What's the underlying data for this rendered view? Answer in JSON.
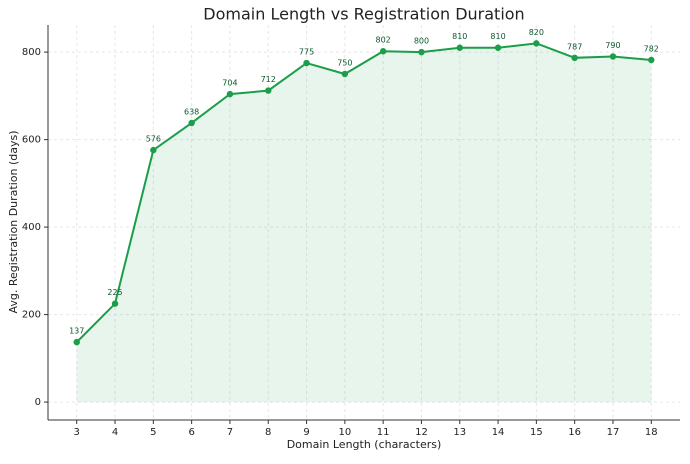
{
  "chart_data": {
    "type": "line",
    "title": "Domain Length vs Registration Duration",
    "xlabel": "Domain Length (characters)",
    "ylabel": "Avg. Registration Duration (days)",
    "x": [
      3,
      4,
      5,
      6,
      7,
      8,
      9,
      10,
      11,
      12,
      13,
      14,
      15,
      16,
      17,
      18
    ],
    "series": [
      {
        "name": "Avg. Registration Duration",
        "color": "#1a9e4a",
        "values": [
          137,
          225,
          576,
          638,
          704,
          712,
          775,
          750,
          802,
          800,
          810,
          810,
          820,
          787,
          790,
          782
        ]
      }
    ],
    "xlim": [
      2.25,
      18.75
    ],
    "xticks": [
      3,
      4,
      5,
      6,
      7,
      8,
      9,
      10,
      11,
      12,
      13,
      14,
      15,
      16,
      17,
      18
    ],
    "ylim": [
      -41,
      862
    ],
    "yticks": [
      0,
      200,
      400,
      600,
      800
    ],
    "grid": true,
    "fill": true
  }
}
